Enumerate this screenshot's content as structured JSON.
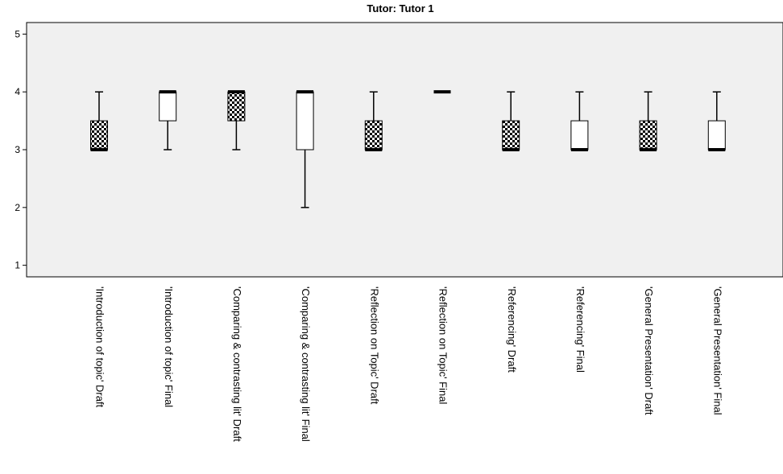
{
  "chart_data": {
    "type": "boxplot",
    "title": "Tutor: Tutor 1",
    "xlabel": "",
    "ylabel": "",
    "ylim": [
      0.8,
      5.2
    ],
    "yticks": [
      1,
      2,
      3,
      4,
      5
    ],
    "grid": false,
    "legend": "none",
    "colors": {
      "plot_background": "#f0f0f0",
      "box_fill": "#ffffff",
      "pattern_dark": "#000000"
    },
    "categories": [
      "'Introduction of topic' Draft",
      "'Introduction of topic' Final",
      "'Comparing & contrasting lit' Draft",
      "'Comparing & contrasting lit' Final",
      "'Reflection on Topic' Draft",
      "'Reflection on Topic' Final",
      "'Referencing' Draft",
      "'Referencing' Final",
      "'General Presentation' Draft",
      "'General Presentation' Final"
    ],
    "boxes": [
      {
        "min": 3,
        "q1": 3,
        "median": 3,
        "q3": 3.5,
        "max": 4,
        "fill": "checker"
      },
      {
        "min": 3,
        "q1": 3.5,
        "median": 4,
        "q3": 4,
        "max": 4,
        "fill": "white"
      },
      {
        "min": 3,
        "q1": 3.5,
        "median": 4,
        "q3": 4,
        "max": 4,
        "fill": "checker"
      },
      {
        "min": 2,
        "q1": 3,
        "median": 4,
        "q3": 4,
        "max": 4,
        "fill": "white"
      },
      {
        "min": 3,
        "q1": 3,
        "median": 3,
        "q3": 3.5,
        "max": 4,
        "fill": "checker"
      },
      {
        "min": 4,
        "q1": 4,
        "median": 4,
        "q3": 4,
        "max": 4,
        "fill": "white"
      },
      {
        "min": 3,
        "q1": 3,
        "median": 3,
        "q3": 3.5,
        "max": 4,
        "fill": "checker"
      },
      {
        "min": 3,
        "q1": 3,
        "median": 3,
        "q3": 3.5,
        "max": 4,
        "fill": "white"
      },
      {
        "min": 3,
        "q1": 3,
        "median": 3,
        "q3": 3.5,
        "max": 4,
        "fill": "checker"
      },
      {
        "min": 3,
        "q1": 3,
        "median": 3,
        "q3": 3.5,
        "max": 4,
        "fill": "white"
      }
    ]
  }
}
